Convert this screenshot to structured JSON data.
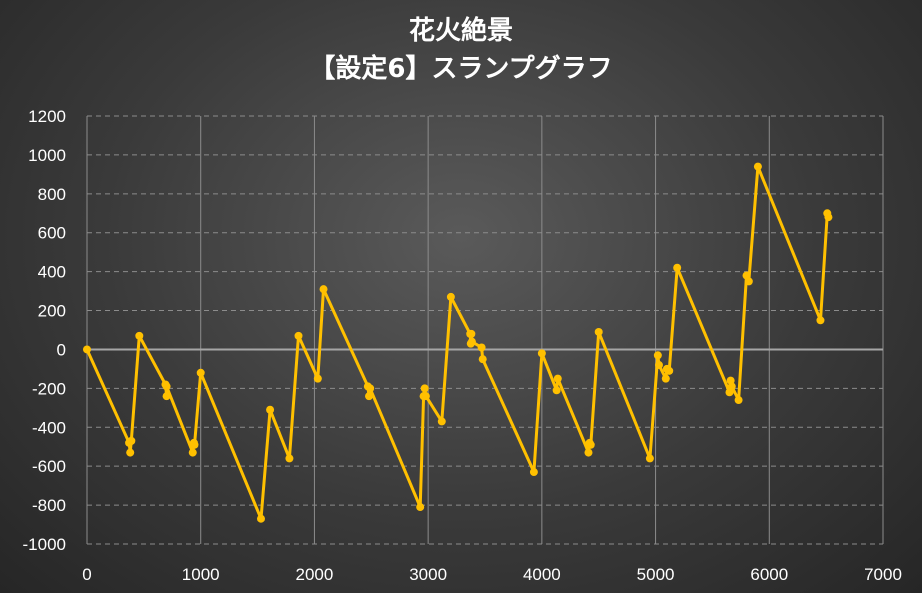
{
  "chart_data": {
    "type": "line",
    "title": "花火絶景",
    "subtitle": "【設定6】スランプグラフ",
    "xlabel": "",
    "ylabel": "",
    "xlim": [
      0,
      7000
    ],
    "ylim": [
      -1000,
      1200
    ],
    "xticks": [
      0,
      1000,
      2000,
      3000,
      4000,
      5000,
      6000,
      7000
    ],
    "yticks": [
      -1000,
      -800,
      -600,
      -400,
      -200,
      0,
      200,
      400,
      600,
      800,
      1000,
      1200
    ],
    "grid": true,
    "legend": "none",
    "colors": {
      "line": "#ffc000",
      "grid": "#8c8c8c",
      "zero": "#a6a6a6"
    },
    "series": [
      {
        "x": [
          0,
          370,
          380,
          390,
          460,
          690,
          700,
          700,
          930,
          940,
          945,
          1000,
          1530,
          1610,
          1780,
          1860,
          2030,
          2080,
          2470,
          2480,
          2490,
          2930,
          2960,
          2970,
          2980,
          3120,
          3200,
          3370,
          3375,
          3380,
          3385,
          3470,
          3480,
          3930,
          4000,
          4130,
          4140,
          4410,
          4420,
          4430,
          4500,
          4950,
          5020,
          5030,
          5090,
          5100,
          5120,
          5190,
          5650,
          5660,
          5670,
          5730,
          5800,
          5820,
          5900,
          6450,
          6510,
          6520
        ],
        "y": [
          0,
          -480,
          -530,
          -470,
          70,
          -180,
          -240,
          -190,
          -530,
          -480,
          -490,
          -120,
          -870,
          -310,
          -560,
          70,
          -150,
          310,
          -190,
          -240,
          -200,
          -810,
          -240,
          -200,
          -240,
          -370,
          270,
          80,
          30,
          80,
          40,
          10,
          -50,
          -630,
          -20,
          -210,
          -150,
          -530,
          -480,
          -490,
          90,
          -560,
          -30,
          -80,
          -150,
          -100,
          -110,
          420,
          -220,
          -160,
          -190,
          -260,
          380,
          350,
          940,
          150,
          700,
          680
        ]
      }
    ]
  }
}
